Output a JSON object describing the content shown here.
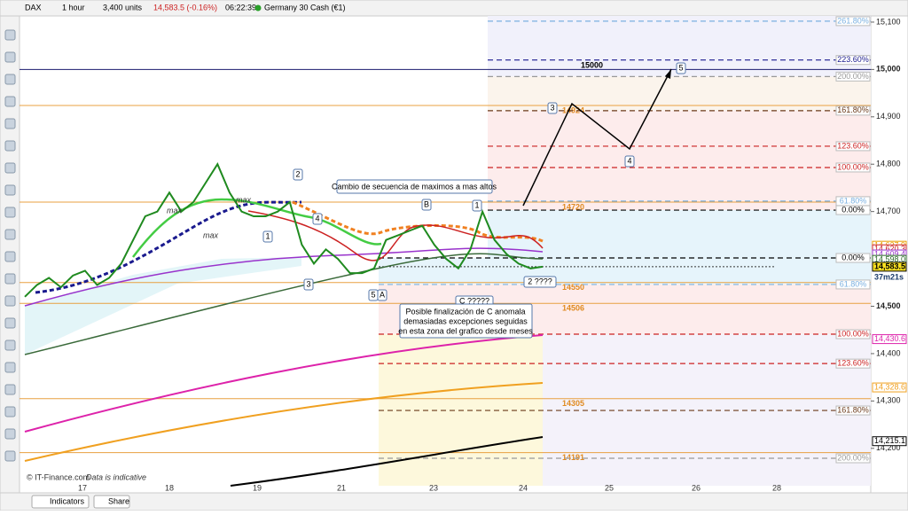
{
  "toolbar": {
    "symbol": "DAX",
    "timeframe": "1 hour",
    "units": "3,400 units",
    "price": "14,583.5 (-0.16%)",
    "time": "06:22:39",
    "instrument": "Germany 30 Cash (€1)"
  },
  "chart_data": {
    "type": "line",
    "ylim": [
      14121,
      15113
    ],
    "yticks": [
      {
        "value": 15100,
        "label": "15,100"
      },
      {
        "value": 15000,
        "label": "15,000"
      },
      {
        "value": 14900,
        "label": "14,900"
      },
      {
        "value": 14800,
        "label": "14,800"
      },
      {
        "value": 14700,
        "label": "14,700"
      },
      {
        "value": 14500,
        "label": "14,500"
      },
      {
        "value": 14400,
        "label": "14,400"
      },
      {
        "value": 14300,
        "label": "14,300"
      },
      {
        "value": 14200,
        "label": "14,200"
      }
    ],
    "x_labels": [
      "17",
      "18",
      "19",
      "21",
      "23",
      "24",
      "25",
      "26",
      "28"
    ],
    "series": [
      {
        "color": "#1f8a1f",
        "values": [
          14520,
          14545,
          14560,
          14540,
          14565,
          14575,
          14545,
          14560,
          14590,
          14640,
          14690,
          14700,
          14740,
          14700,
          14720,
          14760,
          14800,
          14740,
          14700,
          14690,
          14690,
          14700,
          14720,
          14630,
          14590,
          14620,
          14600,
          14570,
          14570,
          14580,
          14640,
          14650,
          14660,
          14670,
          14630,
          14600,
          14580,
          14620,
          14700,
          14640,
          14610,
          14590,
          14580,
          14583.5
        ]
      }
    ],
    "price_labels": [
      {
        "value": 14627.9,
        "label": "14,627.9",
        "color": "#e8a000"
      },
      {
        "value": 14620.3,
        "label": "14,620.3",
        "color": "#cc2222"
      },
      {
        "value": 14609.4,
        "label": "14,609.4",
        "color": "#9933cc"
      },
      {
        "value": 14598.0,
        "label": "14,598.0",
        "color": "#2a6a2a"
      },
      {
        "value": 14583.5,
        "label": "14,583.5",
        "color": "#000000"
      },
      {
        "value": 14430.6,
        "label": "14,430.6",
        "color": "#dd22aa"
      },
      {
        "value": 14328.6,
        "label": "14,328.6",
        "color": "#f0a020"
      },
      {
        "value": 14215.1,
        "label": "14,215.1",
        "color": "#000000"
      }
    ],
    "countdown": "37m21s",
    "levels": [
      {
        "value": 15000,
        "color": "#1a1a6e"
      },
      {
        "value": 14924,
        "color": "#e8a040"
      },
      {
        "value": 14720,
        "color": "#e8a040"
      },
      {
        "value": 14550,
        "color": "#e8a040"
      },
      {
        "value": 14506,
        "color": "#e8a040"
      },
      {
        "value": 14305,
        "color": "#e8a040"
      },
      {
        "value": 14191,
        "color": "#e8a040"
      }
    ],
    "fib_upper": [
      {
        "value": 15102,
        "label": "261.80%",
        "color": "#7ab0e0"
      },
      {
        "value": 15020,
        "label": "223.60%",
        "color": "#1a1a8e"
      },
      {
        "value": 14985,
        "label": "200.00%",
        "color": "#999999"
      },
      {
        "value": 14913,
        "label": "161.80%",
        "color": "#6a3a1a"
      },
      {
        "value": 14838,
        "label": "123.60%",
        "color": "#cc2222"
      },
      {
        "value": 14793,
        "label": "100.00%",
        "color": "#cc2222"
      },
      {
        "value": 14722,
        "label": "61.80%",
        "color": "#7ab0e0"
      },
      {
        "value": 14703,
        "label": "0.00%",
        "color": "#000000"
      }
    ],
    "fib_lower": [
      {
        "value": 14602,
        "label": "0.00%",
        "color": "#000000"
      },
      {
        "value": 14546,
        "label": "61.80%",
        "color": "#7ab0e0"
      },
      {
        "value": 14441,
        "label": "100.00%",
        "color": "#cc2222"
      },
      {
        "value": 14379,
        "label": "123.60%",
        "color": "#cc2222"
      },
      {
        "value": 14280,
        "label": "161.80%",
        "color": "#6a3a1a"
      },
      {
        "value": 14179,
        "label": "200.00%",
        "color": "#999999"
      }
    ],
    "waves": [
      "2",
      "1",
      "3",
      "4",
      "5",
      "A",
      "B",
      "1",
      "C ?????",
      "2 ????",
      "3",
      "4",
      "5"
    ],
    "max_labels": [
      "max",
      "max",
      "max"
    ],
    "annotation_top": "Cambio de secuencia de maximos a mas altos",
    "annotation_note": [
      "Posible finalización de C anomala",
      "demasiadas excepciones seguidas",
      "en esta zona del grafico desde meses"
    ]
  },
  "footer": {
    "copyright": "© IT-Finance.com",
    "note": "Data is indicative",
    "indicators": "Indicators",
    "share": "Share"
  }
}
